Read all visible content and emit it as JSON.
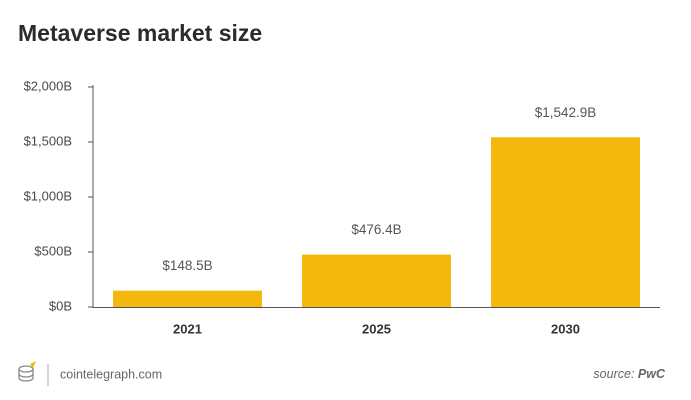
{
  "chart_data": {
    "type": "bar",
    "title": "Metaverse market size",
    "categories": [
      "2021",
      "2025",
      "2030"
    ],
    "values": [
      148.5,
      476.4,
      1542.9
    ],
    "value_labels": [
      "$148.5B",
      "$476.4B",
      "$1,542.9B"
    ],
    "color": "#f4b80c",
    "ylim": [
      0,
      2000
    ],
    "yticks": [
      {
        "value": 0,
        "label": "$0B"
      },
      {
        "value": 500,
        "label": "$500B"
      },
      {
        "value": 1000,
        "label": "$1,000B"
      },
      {
        "value": 1500,
        "label": "$1,500B"
      },
      {
        "value": 2000,
        "label": "$2,000B"
      }
    ],
    "grid": false
  },
  "footer": {
    "brand": "cointelegraph.com",
    "source_label": "source:",
    "source": "PwC"
  }
}
